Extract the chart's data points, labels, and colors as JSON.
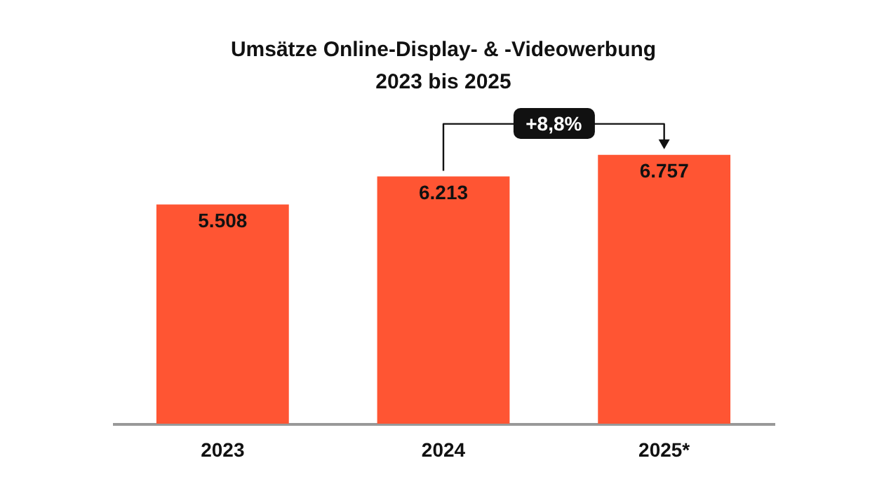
{
  "chart_data": {
    "type": "bar",
    "title": "Umsätze Online-Display- & -Videowerbung\n2023 bis 2025",
    "categories": [
      "2023",
      "2024",
      "2025*"
    ],
    "values": [
      5508,
      6213,
      6757
    ],
    "value_labels": [
      "5.508",
      "6.213",
      "6.757"
    ],
    "color": "#ff5533",
    "annotations": [
      "+8,8%"
    ],
    "grid": false
  }
}
